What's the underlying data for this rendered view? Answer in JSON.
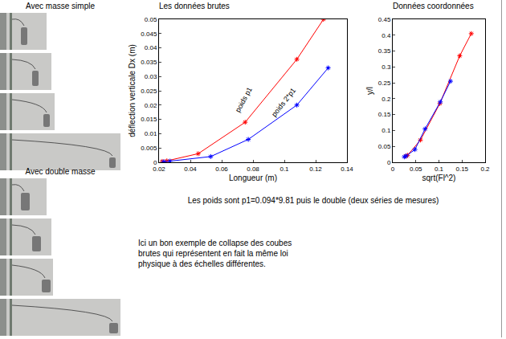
{
  "photos": [
    "Avec masse simple",
    "Avec double masse"
  ],
  "chart_data": [
    {
      "type": "line",
      "title": "Les données brutes",
      "x_label": "Longueur (m)",
      "y_label": "déflection verticale Dx (m)",
      "xlim": [
        0.02,
        0.14
      ],
      "xticks": [
        0.02,
        0.04,
        0.06,
        0.08,
        0.1,
        0.12,
        0.14
      ],
      "ylim": [
        0,
        0.05
      ],
      "yticks": [
        0,
        0.005,
        0.01,
        0.015,
        0.02,
        0.025,
        0.03,
        0.035,
        0.04,
        0.045,
        0.05
      ],
      "grid": false,
      "marker": "star",
      "series": [
        {
          "name": "poids p1",
          "color": "#ff0000",
          "x": [
            0.022,
            0.025,
            0.045,
            0.075,
            0.108,
            0.125
          ],
          "values": [
            0.0003,
            0.0005,
            0.003,
            0.014,
            0.036,
            0.05
          ]
        },
        {
          "name": "poids 2*p1",
          "color": "#0000ff",
          "x": [
            0.023,
            0.027,
            0.053,
            0.077,
            0.108,
            0.128
          ],
          "values": [
            0.0002,
            0.0004,
            0.002,
            0.008,
            0.02,
            0.033
          ]
        }
      ]
    },
    {
      "type": "line",
      "title": "Données coordonnées",
      "x_label": "sqrt(Fl^2)",
      "y_label": "y/l",
      "xlim": [
        0,
        0.2
      ],
      "xticks": [
        0,
        0.05,
        0.1,
        0.15,
        0.2
      ],
      "ylim": [
        0,
        0.45
      ],
      "yticks": [
        0,
        0.05,
        0.1,
        0.15,
        0.2,
        0.25,
        0.3,
        0.35,
        0.4,
        0.45
      ],
      "grid": false,
      "marker": "star",
      "series": [
        {
          "color": "#ff0000",
          "x": [
            0.028,
            0.032,
            0.06,
            0.102,
            0.145,
            0.17
          ],
          "values": [
            0.019,
            0.022,
            0.07,
            0.185,
            0.335,
            0.405
          ]
        },
        {
          "color": "#0000ff",
          "x": [
            0.025,
            0.029,
            0.048,
            0.07,
            0.103,
            0.125
          ],
          "values": [
            0.017,
            0.02,
            0.04,
            0.105,
            0.19,
            0.255
          ]
        }
      ]
    }
  ],
  "caption": "Les poids sont p1=0.094*9.81 puis le double (deux séries de mesures)",
  "note": [
    "Ici un bon exemple de collapse des coubes",
    "brutes qui représentent en fait la même loi",
    "physique à des échelles différentes."
  ]
}
